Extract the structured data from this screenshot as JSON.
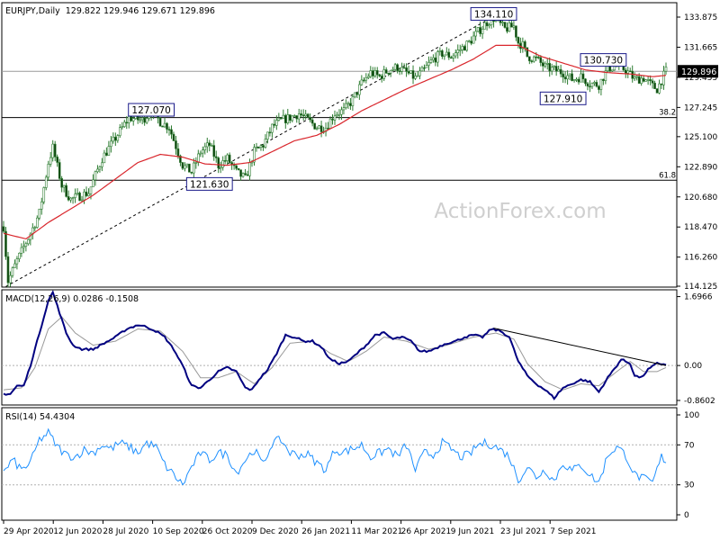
{
  "chart_data": {
    "type": "candlestick",
    "title": "EURJPY,Daily",
    "ohlc_header": "129.822 129.946 129.671 129.896",
    "watermark": "ActionForex.com",
    "colors": {
      "bull": "#2e7d32",
      "bear": "#2e7d32",
      "ma": "#d9262c",
      "macd": "#000080",
      "signal": "#999999",
      "rsi": "#1e90ff",
      "price_tag": "#000000",
      "callout_border": "#1a1a8a"
    },
    "x_labels": [
      "29 Apr 2020",
      "12 Jun 2020",
      "28 Jul 2020",
      "10 Sep 2020",
      "26 Oct 2020",
      "9 Dec 2020",
      "26 Jan 2021",
      "11 Mar 2021",
      "26 Apr 2021",
      "9 Jun 2021",
      "23 Jul 2021",
      "7 Sep 2021"
    ],
    "price": {
      "ylim": [
        114.125,
        134.8
      ],
      "ticks": [
        "133.875",
        "131.665",
        "129.455",
        "127.245",
        "125.100",
        "122.890",
        "120.680",
        "118.470",
        "116.260",
        "114.125"
      ],
      "tick_values": [
        133.875,
        131.665,
        129.455,
        127.245,
        125.1,
        122.89,
        120.68,
        118.47,
        116.26,
        114.125
      ],
      "last": "129.896",
      "last_value": 129.896,
      "hlines": [
        {
          "value": 129.896,
          "label": ""
        },
        {
          "value": 126.5,
          "label": "38.2"
        },
        {
          "value": 121.9,
          "label": "61.8"
        }
      ],
      "callouts": [
        {
          "text": "134.110",
          "value": 134.11,
          "i": 219
        },
        {
          "text": "130.730",
          "value": 130.73,
          "i": 268
        },
        {
          "text": "127.910",
          "value": 127.91,
          "i": 250
        },
        {
          "text": "127.070",
          "value": 127.07,
          "i": 66
        },
        {
          "text": "121.630",
          "value": 121.63,
          "i": 92
        }
      ],
      "trendline": {
        "x": [
          1,
          221
        ],
        "y": [
          114.1,
          134.1
        ]
      },
      "anchors": [
        [
          0,
          118.5
        ],
        [
          2,
          114.5
        ],
        [
          6,
          116.0
        ],
        [
          12,
          118.0
        ],
        [
          16,
          119.5
        ],
        [
          20,
          123.2
        ],
        [
          22,
          124.3
        ],
        [
          26,
          121.5
        ],
        [
          30,
          120.5
        ],
        [
          38,
          121.0
        ],
        [
          44,
          123.5
        ],
        [
          50,
          125.0
        ],
        [
          56,
          126.5
        ],
        [
          62,
          126.3
        ],
        [
          66,
          127.0
        ],
        [
          70,
          126.2
        ],
        [
          74,
          125.8
        ],
        [
          80,
          123.0
        ],
        [
          84,
          122.5
        ],
        [
          88,
          124.0
        ],
        [
          92,
          124.5
        ],
        [
          96,
          123.0
        ],
        [
          100,
          123.5
        ],
        [
          104,
          122.5
        ],
        [
          108,
          122.0
        ],
        [
          112,
          124.0
        ],
        [
          116,
          124.5
        ],
        [
          120,
          125.8
        ],
        [
          124,
          126.3
        ],
        [
          128,
          126.5
        ],
        [
          132,
          126.8
        ],
        [
          136,
          126.3
        ],
        [
          140,
          125.8
        ],
        [
          144,
          125.8
        ],
        [
          148,
          126.8
        ],
        [
          152,
          127.0
        ],
        [
          156,
          127.8
        ],
        [
          160,
          129.0
        ],
        [
          164,
          129.8
        ],
        [
          168,
          129.5
        ],
        [
          172,
          130.0
        ],
        [
          176,
          130.2
        ],
        [
          180,
          129.8
        ],
        [
          184,
          129.4
        ],
        [
          188,
          130.0
        ],
        [
          192,
          130.8
        ],
        [
          196,
          131.2
        ],
        [
          200,
          131.0
        ],
        [
          204,
          131.5
        ],
        [
          208,
          132.0
        ],
        [
          212,
          132.8
        ],
        [
          216,
          133.5
        ],
        [
          219,
          133.8
        ],
        [
          224,
          133.0
        ],
        [
          228,
          133.2
        ],
        [
          230,
          132.0
        ],
        [
          232,
          131.8
        ],
        [
          234,
          131.0
        ],
        [
          238,
          130.8
        ],
        [
          242,
          130.2
        ],
        [
          246,
          130.0
        ],
        [
          250,
          129.8
        ],
        [
          254,
          129.3
        ],
        [
          258,
          129.5
        ],
        [
          262,
          129.0
        ],
        [
          266,
          128.9
        ],
        [
          270,
          130.1
        ],
        [
          274,
          130.3
        ],
        [
          278,
          130.0
        ],
        [
          282,
          129.3
        ],
        [
          286,
          129.4
        ],
        [
          290,
          128.8
        ],
        [
          292,
          128.6
        ],
        [
          296,
          129.9
        ]
      ],
      "ma": [
        [
          0,
          118.0
        ],
        [
          10,
          117.6
        ],
        [
          20,
          118.8
        ],
        [
          30,
          119.8
        ],
        [
          40,
          120.8
        ],
        [
          50,
          122.0
        ],
        [
          60,
          123.2
        ],
        [
          70,
          123.8
        ],
        [
          80,
          123.6
        ],
        [
          90,
          123.1
        ],
        [
          100,
          123.0
        ],
        [
          110,
          123.2
        ],
        [
          120,
          124.0
        ],
        [
          130,
          124.8
        ],
        [
          140,
          125.2
        ],
        [
          150,
          126.0
        ],
        [
          160,
          127.0
        ],
        [
          170,
          127.8
        ],
        [
          180,
          128.6
        ],
        [
          190,
          129.3
        ],
        [
          200,
          130.0
        ],
        [
          210,
          130.8
        ],
        [
          220,
          131.8
        ],
        [
          230,
          131.8
        ],
        [
          240,
          131.0
        ],
        [
          250,
          130.5
        ],
        [
          260,
          130.0
        ],
        [
          270,
          129.8
        ],
        [
          280,
          129.7
        ],
        [
          290,
          129.5
        ],
        [
          296,
          129.6
        ]
      ]
    },
    "macd": {
      "label": "MACD(12,26,9) 0.0286 -0.1508",
      "ylim": [
        -0.95,
        1.82
      ],
      "ticks": [
        "1.6966",
        "0.00",
        "-0.8602"
      ],
      "tick_values": [
        1.6966,
        0.0,
        -0.8602
      ],
      "zero": "0.00",
      "anchors": [
        [
          0,
          -0.7
        ],
        [
          3,
          -0.7
        ],
        [
          6,
          -0.5
        ],
        [
          9,
          -0.5
        ],
        [
          12,
          0.0
        ],
        [
          15,
          0.6
        ],
        [
          18,
          1.2
        ],
        [
          20,
          1.6
        ],
        [
          22,
          1.8
        ],
        [
          25,
          1.3
        ],
        [
          28,
          0.8
        ],
        [
          31,
          0.5
        ],
        [
          35,
          0.4
        ],
        [
          40,
          0.4
        ],
        [
          45,
          0.55
        ],
        [
          50,
          0.7
        ],
        [
          55,
          0.9
        ],
        [
          60,
          1.0
        ],
        [
          64,
          0.95
        ],
        [
          68,
          0.85
        ],
        [
          72,
          0.7
        ],
        [
          76,
          0.4
        ],
        [
          80,
          0.0
        ],
        [
          84,
          -0.5
        ],
        [
          88,
          -0.55
        ],
        [
          92,
          -0.35
        ],
        [
          96,
          -0.15
        ],
        [
          100,
          -0.05
        ],
        [
          104,
          -0.15
        ],
        [
          108,
          -0.55
        ],
        [
          111,
          -0.6
        ],
        [
          114,
          -0.35
        ],
        [
          118,
          -0.1
        ],
        [
          122,
          0.3
        ],
        [
          126,
          0.75
        ],
        [
          130,
          0.7
        ],
        [
          134,
          0.6
        ],
        [
          138,
          0.6
        ],
        [
          142,
          0.45
        ],
        [
          146,
          0.15
        ],
        [
          150,
          0.05
        ],
        [
          154,
          0.1
        ],
        [
          158,
          0.3
        ],
        [
          162,
          0.5
        ],
        [
          166,
          0.75
        ],
        [
          170,
          0.8
        ],
        [
          174,
          0.65
        ],
        [
          178,
          0.7
        ],
        [
          182,
          0.6
        ],
        [
          186,
          0.35
        ],
        [
          190,
          0.35
        ],
        [
          194,
          0.45
        ],
        [
          198,
          0.55
        ],
        [
          202,
          0.6
        ],
        [
          206,
          0.7
        ],
        [
          210,
          0.75
        ],
        [
          214,
          0.7
        ],
        [
          218,
          0.9
        ],
        [
          222,
          0.85
        ],
        [
          226,
          0.7
        ],
        [
          230,
          0.1
        ],
        [
          234,
          -0.25
        ],
        [
          238,
          -0.45
        ],
        [
          242,
          -0.6
        ],
        [
          246,
          -0.8
        ],
        [
          250,
          -0.55
        ],
        [
          254,
          -0.45
        ],
        [
          258,
          -0.35
        ],
        [
          262,
          -0.4
        ],
        [
          266,
          -0.65
        ],
        [
          270,
          -0.3
        ],
        [
          274,
          0.0
        ],
        [
          276,
          0.15
        ],
        [
          280,
          0.05
        ],
        [
          282,
          -0.25
        ],
        [
          285,
          -0.3
        ],
        [
          288,
          -0.1
        ],
        [
          292,
          0.05
        ],
        [
          296,
          0.03
        ]
      ],
      "signal_anchors": [
        [
          0,
          -0.6
        ],
        [
          8,
          -0.55
        ],
        [
          14,
          -0.05
        ],
        [
          20,
          0.9
        ],
        [
          26,
          1.2
        ],
        [
          32,
          0.8
        ],
        [
          40,
          0.5
        ],
        [
          50,
          0.6
        ],
        [
          60,
          0.9
        ],
        [
          70,
          0.85
        ],
        [
          80,
          0.35
        ],
        [
          88,
          -0.3
        ],
        [
          96,
          -0.3
        ],
        [
          104,
          -0.15
        ],
        [
          112,
          -0.45
        ],
        [
          120,
          -0.05
        ],
        [
          128,
          0.55
        ],
        [
          138,
          0.6
        ],
        [
          146,
          0.3
        ],
        [
          154,
          0.1
        ],
        [
          162,
          0.35
        ],
        [
          170,
          0.7
        ],
        [
          180,
          0.6
        ],
        [
          190,
          0.4
        ],
        [
          198,
          0.5
        ],
        [
          210,
          0.7
        ],
        [
          220,
          0.8
        ],
        [
          228,
          0.65
        ],
        [
          234,
          0.05
        ],
        [
          242,
          -0.4
        ],
        [
          250,
          -0.6
        ],
        [
          258,
          -0.45
        ],
        [
          266,
          -0.5
        ],
        [
          274,
          -0.15
        ],
        [
          280,
          0.1
        ],
        [
          286,
          -0.15
        ],
        [
          292,
          -0.15
        ],
        [
          296,
          -0.05
        ]
      ],
      "trendline": {
        "x": [
          219,
          296
        ],
        "y": [
          0.92,
          0.0
        ]
      }
    },
    "rsi": {
      "label": "RSI(14) 54.4304",
      "ylim": [
        0,
        100
      ],
      "ticks": [
        "100",
        "70",
        "30",
        "0"
      ],
      "tick_values": [
        100,
        70,
        30,
        0
      ],
      "anchors": [
        [
          0,
          42
        ],
        [
          4,
          55
        ],
        [
          8,
          45
        ],
        [
          12,
          52
        ],
        [
          16,
          75
        ],
        [
          20,
          82
        ],
        [
          24,
          68
        ],
        [
          28,
          60
        ],
        [
          32,
          58
        ],
        [
          36,
          65
        ],
        [
          40,
          62
        ],
        [
          44,
          70
        ],
        [
          48,
          66
        ],
        [
          52,
          72
        ],
        [
          56,
          68
        ],
        [
          60,
          62
        ],
        [
          64,
          72
        ],
        [
          68,
          68
        ],
        [
          72,
          50
        ],
        [
          76,
          40
        ],
        [
          80,
          30
        ],
        [
          84,
          48
        ],
        [
          88,
          62
        ],
        [
          92,
          55
        ],
        [
          96,
          62
        ],
        [
          100,
          60
        ],
        [
          104,
          42
        ],
        [
          108,
          55
        ],
        [
          112,
          65
        ],
        [
          116,
          50
        ],
        [
          120,
          72
        ],
        [
          124,
          75
        ],
        [
          128,
          62
        ],
        [
          132,
          60
        ],
        [
          136,
          60
        ],
        [
          140,
          52
        ],
        [
          144,
          45
        ],
        [
          148,
          65
        ],
        [
          152,
          63
        ],
        [
          156,
          66
        ],
        [
          160,
          70
        ],
        [
          164,
          58
        ],
        [
          168,
          62
        ],
        [
          172,
          66
        ],
        [
          176,
          58
        ],
        [
          180,
          70
        ],
        [
          184,
          45
        ],
        [
          188,
          62
        ],
        [
          192,
          60
        ],
        [
          196,
          72
        ],
        [
          200,
          66
        ],
        [
          204,
          58
        ],
        [
          208,
          60
        ],
        [
          212,
          70
        ],
        [
          216,
          72
        ],
        [
          220,
          68
        ],
        [
          224,
          62
        ],
        [
          226,
          58
        ],
        [
          230,
          35
        ],
        [
          234,
          48
        ],
        [
          238,
          38
        ],
        [
          242,
          45
        ],
        [
          246,
          34
        ],
        [
          250,
          52
        ],
        [
          254,
          44
        ],
        [
          258,
          50
        ],
        [
          262,
          40
        ],
        [
          266,
          32
        ],
        [
          270,
          60
        ],
        [
          274,
          68
        ],
        [
          278,
          60
        ],
        [
          282,
          40
        ],
        [
          286,
          36
        ],
        [
          290,
          32
        ],
        [
          294,
          58
        ],
        [
          296,
          54
        ]
      ]
    }
  }
}
